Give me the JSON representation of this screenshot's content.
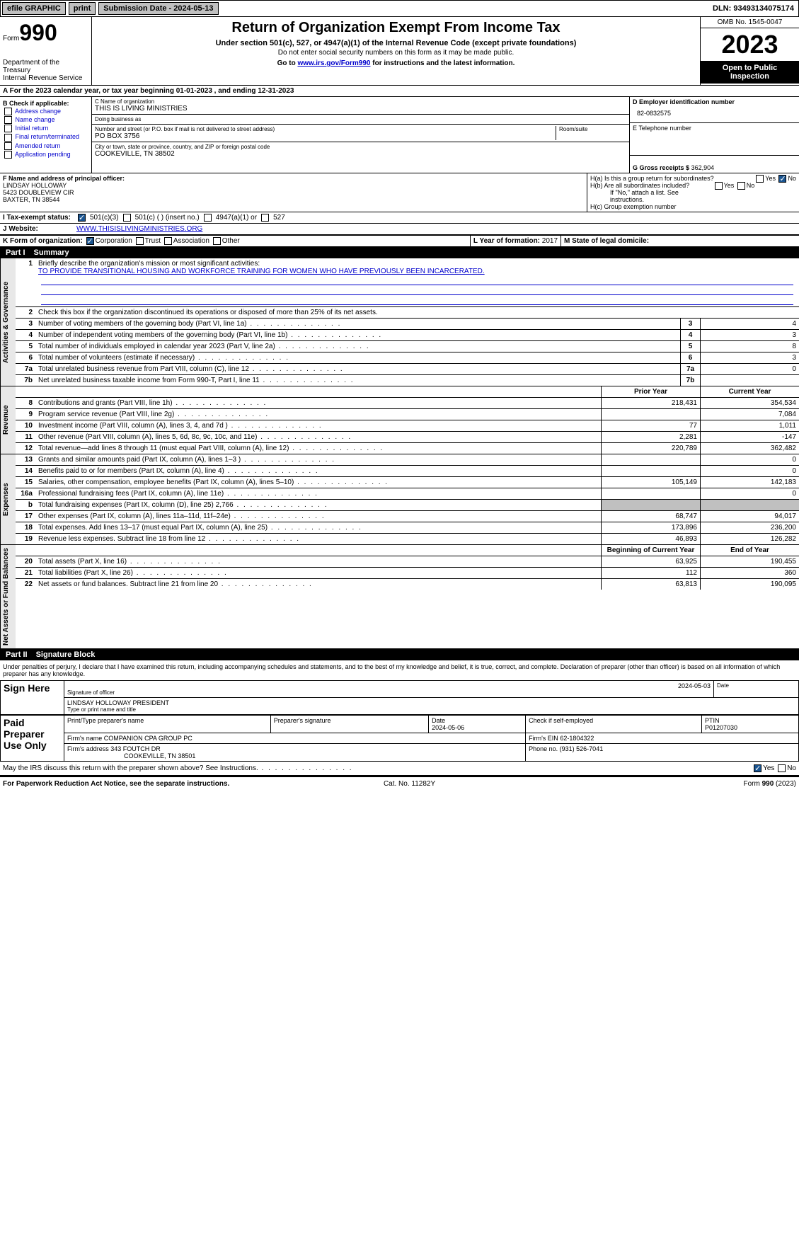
{
  "topbar": {
    "efile": "efile GRAPHIC",
    "print": "print",
    "submission": "Submission Date - 2024-05-13",
    "dln": "DLN: 93493134075174"
  },
  "header": {
    "form": "Form",
    "num": "990",
    "dept": "Department of the Treasury",
    "irs": "Internal Revenue Service",
    "title": "Return of Organization Exempt From Income Tax",
    "sub1": "Under section 501(c), 527, or 4947(a)(1) of the Internal Revenue Code (except private foundations)",
    "sub2": "Do not enter social security numbers on this form as it may be made public.",
    "sub3a": "Go to ",
    "sub3link": "www.irs.gov/Form990",
    "sub3b": " for instructions and the latest information.",
    "omb": "OMB No. 1545-0047",
    "year": "2023",
    "open": "Open to Public Inspection"
  },
  "rowA": "A For the 2023 calendar year, or tax year beginning 01-01-2023   , and ending 12-31-2023",
  "colB": {
    "hdr": "B Check if applicable:",
    "opts": [
      "Address change",
      "Name change",
      "Initial return",
      "Final return/terminated",
      "Amended return",
      "Application pending"
    ]
  },
  "colC": {
    "nameL": "C Name of organization",
    "name": "THIS IS LIVING MINISTRIES",
    "dbaL": "Doing business as",
    "dba": "",
    "addrL": "Number and street (or P.O. box if mail is not delivered to street address)",
    "room": "Room/suite",
    "addr": "PO BOX 3756",
    "cityL": "City or town, state or province, country, and ZIP or foreign postal code",
    "city": "COOKEVILLE, TN  38502"
  },
  "colD": {
    "einL": "D Employer identification number",
    "ein": "82-0832575",
    "telL": "E Telephone number",
    "tel": "",
    "grossL": "G Gross receipts $",
    "gross": "362,904"
  },
  "f": {
    "lbl": "F  Name and address of principal officer:",
    "n": "LINDSAY HOLLOWAY",
    "a1": "5423 DOUBLEVIEW CIR",
    "a2": "BAXTER, TN  38544"
  },
  "h": {
    "a": "H(a)  Is this a group return for subordinates?",
    "b": "H(b)  Are all subordinates included?",
    "bnote": "If \"No,\" attach a list. See instructions.",
    "c": "H(c)  Group exemption number"
  },
  "i": {
    "lbl": "I  Tax-exempt status:",
    "o1": "501(c)(3)",
    "o2": "501(c) (  ) (insert no.)",
    "o3": "4947(a)(1) or",
    "o4": "527"
  },
  "j": {
    "lbl": "J  Website:",
    "val": " WWW.THISISLIVINGMINISTRIES.ORG"
  },
  "k": {
    "lbl": "K Form of organization:",
    "o1": "Corporation",
    "o2": "Trust",
    "o3": "Association",
    "o4": "Other"
  },
  "l": {
    "lbl": "L Year of formation:",
    "val": "2017"
  },
  "m": {
    "lbl": "M State of legal domicile:",
    "val": ""
  },
  "part1": {
    "pn": "Part I",
    "title": "Summary"
  },
  "gov": {
    "label": "Activities & Governance",
    "l1": "Briefly describe the organization's mission or most significant activities:",
    "l1v": "TO PROVIDE TRANSITIONAL HOUSING AND WORKFORCE TRAINING FOR WOMEN WHO HAVE PREVIOUSLY BEEN INCARCERATED.",
    "l2": "Check this box      if the organization discontinued its operations or disposed of more than 25% of its net assets.",
    "rows": [
      {
        "n": "3",
        "t": "Number of voting members of the governing body (Part VI, line 1a)",
        "v": "4"
      },
      {
        "n": "4",
        "t": "Number of independent voting members of the governing body (Part VI, line 1b)",
        "v": "3"
      },
      {
        "n": "5",
        "t": "Total number of individuals employed in calendar year 2023 (Part V, line 2a)",
        "v": "8"
      },
      {
        "n": "6",
        "t": "Total number of volunteers (estimate if necessary)",
        "v": "3"
      },
      {
        "n": "7a",
        "t": "Total unrelated business revenue from Part VIII, column (C), line 12",
        "v": "0"
      },
      {
        "n": "7b",
        "t": "Net unrelated business taxable income from Form 990-T, Part I, line 11",
        "v": ""
      }
    ]
  },
  "rev": {
    "label": "Revenue",
    "prior": "Prior Year",
    "curr": "Current Year",
    "rows": [
      {
        "n": "8",
        "t": "Contributions and grants (Part VIII, line 1h)",
        "p": "218,431",
        "c": "354,534"
      },
      {
        "n": "9",
        "t": "Program service revenue (Part VIII, line 2g)",
        "p": "",
        "c": "7,084"
      },
      {
        "n": "10",
        "t": "Investment income (Part VIII, column (A), lines 3, 4, and 7d )",
        "p": "77",
        "c": "1,011"
      },
      {
        "n": "11",
        "t": "Other revenue (Part VIII, column (A), lines 5, 6d, 8c, 9c, 10c, and 11e)",
        "p": "2,281",
        "c": "-147"
      },
      {
        "n": "12",
        "t": "Total revenue—add lines 8 through 11 (must equal Part VIII, column (A), line 12)",
        "p": "220,789",
        "c": "362,482"
      }
    ]
  },
  "exp": {
    "label": "Expenses",
    "rows": [
      {
        "n": "13",
        "t": "Grants and similar amounts paid (Part IX, column (A), lines 1–3 )",
        "p": "",
        "c": "0"
      },
      {
        "n": "14",
        "t": "Benefits paid to or for members (Part IX, column (A), line 4)",
        "p": "",
        "c": "0"
      },
      {
        "n": "15",
        "t": "Salaries, other compensation, employee benefits (Part IX, column (A), lines 5–10)",
        "p": "105,149",
        "c": "142,183"
      },
      {
        "n": "16a",
        "t": "Professional fundraising fees (Part IX, column (A), line 11e)",
        "p": "",
        "c": "0"
      },
      {
        "n": "b",
        "t": "Total fundraising expenses (Part IX, column (D), line 25) 2,766",
        "p": "grey",
        "c": "grey"
      },
      {
        "n": "17",
        "t": "Other expenses (Part IX, column (A), lines 11a–11d, 11f–24e)",
        "p": "68,747",
        "c": "94,017"
      },
      {
        "n": "18",
        "t": "Total expenses. Add lines 13–17 (must equal Part IX, column (A), line 25)",
        "p": "173,896",
        "c": "236,200"
      },
      {
        "n": "19",
        "t": "Revenue less expenses. Subtract line 18 from line 12",
        "p": "46,893",
        "c": "126,282"
      }
    ]
  },
  "net": {
    "label": "Net Assets or Fund Balances",
    "beg": "Beginning of Current Year",
    "end": "End of Year",
    "rows": [
      {
        "n": "20",
        "t": "Total assets (Part X, line 16)",
        "p": "63,925",
        "c": "190,455"
      },
      {
        "n": "21",
        "t": "Total liabilities (Part X, line 26)",
        "p": "112",
        "c": "360"
      },
      {
        "n": "22",
        "t": "Net assets or fund balances. Subtract line 21 from line 20",
        "p": "63,813",
        "c": "190,095"
      }
    ]
  },
  "part2": {
    "pn": "Part II",
    "title": "Signature Block"
  },
  "sig": {
    "decl": "Under penalties of perjury, I declare that I have examined this return, including accompanying schedules and statements, and to the best of my knowledge and belief, it is true, correct, and complete. Declaration of preparer (other than officer) is based on all information of which preparer has any knowledge.",
    "signHere": "Sign Here",
    "sigOff": "Signature of officer",
    "date": "Date",
    "sigDate": "2024-05-03",
    "officer": "LINDSAY HOLLOWAY PRESIDENT",
    "typeL": "Type or print name and title",
    "paid": "Paid Preparer Use Only",
    "prepName": "Print/Type preparer's name",
    "prepSig": "Preparer's signature",
    "prepDate": "Date",
    "prepDateV": "2024-05-06",
    "selfL": "Check       if self-employed",
    "ptinL": "PTIN",
    "ptin": "P01207030",
    "firmNameL": "Firm's name   ",
    "firmName": "COMPANION CPA GROUP PC",
    "firmEinL": "Firm's EIN ",
    "firmEin": "62-1804322",
    "firmAddrL": "Firm's address ",
    "firmAddr1": "343 FOUTCH DR",
    "firmAddr2": "COOKEVILLE, TN  38501",
    "phoneL": "Phone no.",
    "phone": "(931) 526-7041",
    "discuss": "May the IRS discuss this return with the preparer shown above? See Instructions."
  },
  "footer": {
    "l": "For Paperwork Reduction Act Notice, see the separate instructions.",
    "m": "Cat. No. 11282Y",
    "r": "Form 990 (2023)"
  }
}
